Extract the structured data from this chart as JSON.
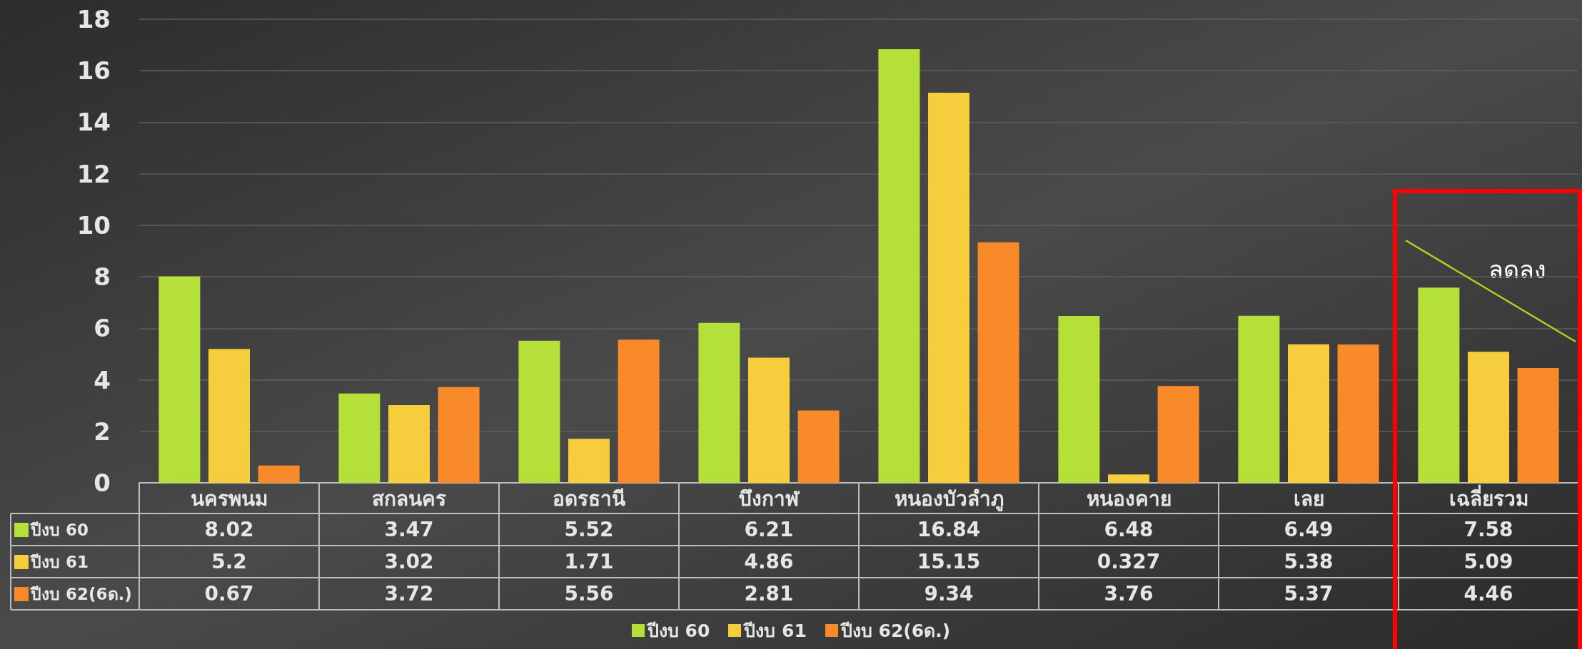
{
  "chart_data": {
    "type": "bar",
    "categories": [
      "นครพนม",
      "สกลนคร",
      "อดรธานี",
      "บึงกาฬ",
      "หนองบัวลำภู",
      "หนองคาย",
      "เลย",
      "เฉลี่ยรวม"
    ],
    "series": [
      {
        "name": "ปีงบ 60",
        "color": "#b5e03a",
        "values": [
          8.02,
          3.47,
          5.52,
          6.21,
          16.84,
          6.48,
          6.49,
          7.58
        ]
      },
      {
        "name": "ปีงบ 61",
        "color": "#f6cd3c",
        "values": [
          5.2,
          3.02,
          1.71,
          4.86,
          15.15,
          0.327,
          5.38,
          5.09
        ]
      },
      {
        "name": "ปีงบ 62(6ด.)",
        "color": "#f98a2a",
        "values": [
          0.67,
          3.72,
          5.56,
          2.81,
          9.34,
          3.76,
          5.37,
          4.46
        ]
      }
    ],
    "ylim": [
      0,
      18
    ],
    "yticks": [
      0,
      2,
      4,
      6,
      8,
      10,
      12,
      14,
      16,
      18
    ],
    "grid": "y",
    "legend": "bottom",
    "data_labels": true,
    "annotations": [
      "ลดลง"
    ]
  }
}
